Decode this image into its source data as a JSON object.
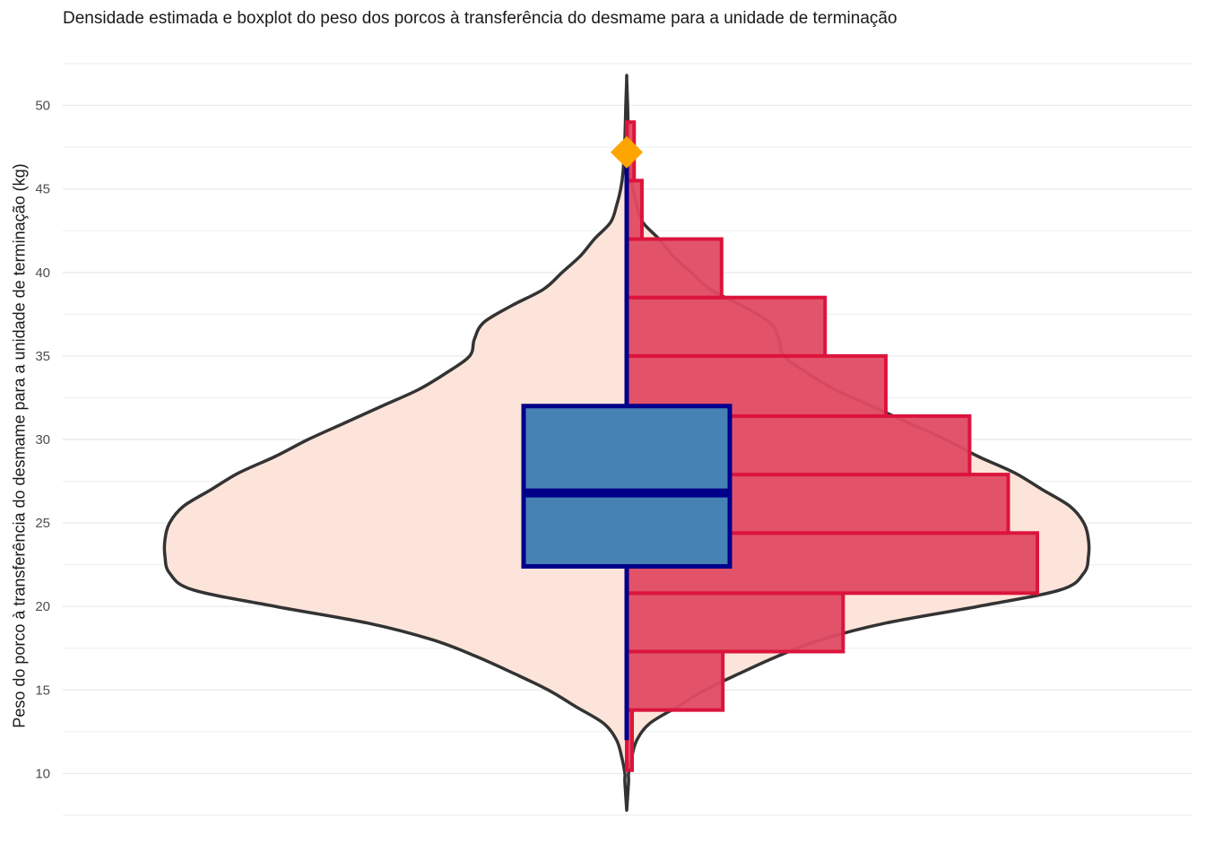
{
  "chart_data": {
    "type": "violin-boxplot-histogram",
    "title": "Densidade estimada e boxplot do peso dos porcos à transferência do desmame para a unidade de terminação",
    "xlabel": "",
    "ylabel": "Peso do porco à transferência do desmame para a unidade de terminação (kg)",
    "ylim": [
      7.5,
      52.5
    ],
    "yticks": [
      10,
      15,
      20,
      25,
      30,
      35,
      40,
      45,
      50
    ],
    "ytick_labels": [
      "10",
      "15",
      "20",
      "25",
      "30",
      "35",
      "40",
      "45",
      "50"
    ],
    "grid": true,
    "legend": "none",
    "violin": {
      "ymin": 7.8,
      "ymax": 51.6,
      "density_relative": [
        [
          7.8,
          0.0
        ],
        [
          9.5,
          0.004
        ],
        [
          10.0,
          0.004
        ],
        [
          11.0,
          0.011
        ],
        [
          12.0,
          0.022
        ],
        [
          13.0,
          0.05
        ],
        [
          14.0,
          0.11
        ],
        [
          15.0,
          0.17
        ],
        [
          16.0,
          0.245
        ],
        [
          17.0,
          0.325
        ],
        [
          18.0,
          0.42
        ],
        [
          19.0,
          0.56
        ],
        [
          20.0,
          0.76
        ],
        [
          21.0,
          0.94
        ],
        [
          22.0,
          0.99
        ],
        [
          23.0,
          1.0
        ],
        [
          24.0,
          1.0
        ],
        [
          25.0,
          0.99
        ],
        [
          26.0,
          0.96
        ],
        [
          27.0,
          0.9
        ],
        [
          28.0,
          0.84
        ],
        [
          29.0,
          0.76
        ],
        [
          30.0,
          0.69
        ],
        [
          31.0,
          0.61
        ],
        [
          32.0,
          0.53
        ],
        [
          33.0,
          0.45
        ],
        [
          34.0,
          0.39
        ],
        [
          35.0,
          0.34
        ],
        [
          36.0,
          0.33
        ],
        [
          37.0,
          0.31
        ],
        [
          38.0,
          0.25
        ],
        [
          39.0,
          0.18
        ],
        [
          40.0,
          0.14
        ],
        [
          41.0,
          0.1
        ],
        [
          42.0,
          0.07
        ],
        [
          43.0,
          0.035
        ],
        [
          44.0,
          0.022
        ],
        [
          45.0,
          0.013
        ],
        [
          46.0,
          0.008
        ],
        [
          48.0,
          0.004
        ],
        [
          50.0,
          0.002
        ],
        [
          51.6,
          0.0
        ]
      ]
    },
    "boxplot": {
      "whisker_low": 12.0,
      "q1": 22.4,
      "median": 26.8,
      "q3": 32.0,
      "whisker_high": 47.1,
      "outliers": [
        47.2
      ]
    },
    "histogram": {
      "bins": [
        {
          "y0": 10.2,
          "y1": 13.8,
          "height": 0.012
        },
        {
          "y0": 13.8,
          "y1": 17.3,
          "height": 0.234
        },
        {
          "y0": 17.3,
          "y1": 20.8,
          "height": 0.527
        },
        {
          "y0": 20.8,
          "y1": 24.4,
          "height": 1.0
        },
        {
          "y0": 24.4,
          "y1": 27.9,
          "height": 0.929
        },
        {
          "y0": 27.9,
          "y1": 31.4,
          "height": 0.835
        },
        {
          "y0": 31.4,
          "y1": 35.0,
          "height": 0.631
        },
        {
          "y0": 35.0,
          "y1": 38.5,
          "height": 0.483
        },
        {
          "y0": 38.5,
          "y1": 42.0,
          "height": 0.231
        },
        {
          "y0": 42.0,
          "y1": 45.5,
          "height": 0.037
        },
        {
          "y0": 45.5,
          "y1": 49.0,
          "height": 0.018
        }
      ]
    },
    "colors": {
      "violin_fill": "#fde4da",
      "violin_line": "#333333",
      "histogram_fill": "#e04b63",
      "histogram_line": "#dc143c",
      "box_fill": "#4682b4",
      "box_line": "#00008b",
      "outlier": "#ffa500",
      "grid": "#ebebeb"
    }
  }
}
